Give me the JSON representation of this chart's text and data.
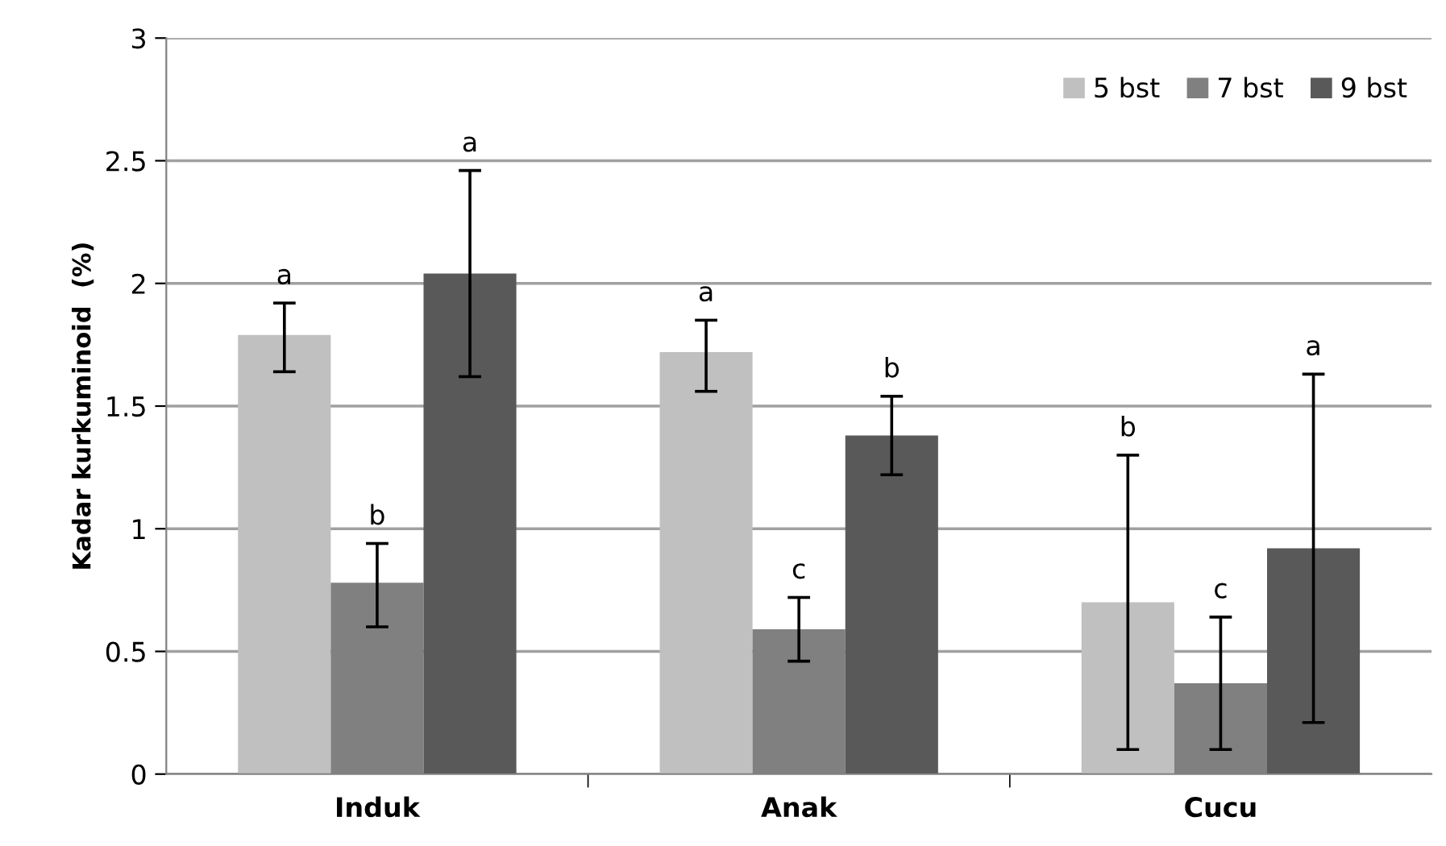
{
  "chart_data": {
    "type": "bar",
    "ylabel": "Kadar kurkuminoid  (%)",
    "categories": [
      "Induk",
      "Anak",
      "Cucu"
    ],
    "series": [
      {
        "name": "5 bst",
        "color": "#c0c0c0",
        "values": [
          1.79,
          1.72,
          0.7
        ],
        "errors": [
          [
            1.64,
            1.92
          ],
          [
            1.56,
            1.85
          ],
          [
            0.1,
            1.3
          ]
        ]
      },
      {
        "name": "7 bst",
        "color": "#808080",
        "values": [
          0.78,
          0.59,
          0.37
        ],
        "errors": [
          [
            0.6,
            0.94
          ],
          [
            0.46,
            0.72
          ],
          [
            0.1,
            0.64
          ]
        ]
      },
      {
        "name": "9 bst",
        "color": "#595959",
        "values": [
          2.04,
          1.38,
          0.92
        ],
        "errors": [
          [
            1.62,
            2.46
          ],
          [
            1.22,
            1.54
          ],
          [
            0.21,
            1.63
          ]
        ]
      }
    ],
    "annotations": [
      "a",
      "b",
      "a",
      "a",
      "c",
      "b",
      "b",
      "c",
      "a"
    ],
    "ylim": [
      0,
      3
    ],
    "yticks": [
      0,
      0.5,
      1,
      1.5,
      2,
      2.5,
      3
    ],
    "grid": "y",
    "legend": "top right"
  }
}
